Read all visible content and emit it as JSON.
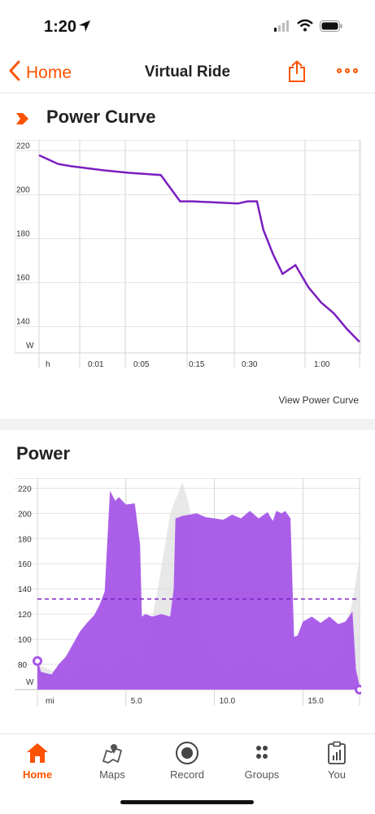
{
  "status_bar": {
    "time": "1:20"
  },
  "nav": {
    "back_label": "Home",
    "title": "Virtual Ride"
  },
  "power_curve": {
    "title": "Power Curve",
    "link_label": "View Power Curve",
    "chart_data": {
      "type": "line",
      "x_tick_labels": [
        "h",
        "0:01",
        "0:05",
        "0:15",
        "0:30",
        "1:00"
      ],
      "y_ticks": [
        220,
        200,
        180,
        160,
        140
      ],
      "y_unit": "W",
      "ylim": [
        128,
        225
      ],
      "color": "#7a1fbf",
      "x": [
        0,
        0.06,
        0.1,
        0.21,
        0.28,
        0.38,
        0.44,
        0.48,
        0.62,
        0.65,
        0.68,
        0.7,
        0.73,
        0.76,
        0.8,
        0.84,
        0.88,
        0.92,
        0.96,
        1.0
      ],
      "values": [
        218,
        214,
        213,
        211,
        210,
        209,
        197,
        197,
        196,
        197,
        197,
        184,
        173,
        164,
        168,
        158,
        151,
        146,
        139,
        133
      ]
    }
  },
  "power": {
    "title": "Power",
    "chart_data": {
      "type": "area",
      "x_tick_labels": [
        "mi",
        "5.0",
        "10.0",
        "15.0"
      ],
      "x_tick_values": [
        0,
        5.0,
        10.0,
        15.0
      ],
      "xlim": [
        0,
        18.2
      ],
      "y_ticks": [
        220,
        200,
        180,
        160,
        140,
        120,
        100,
        80
      ],
      "y_unit": "W",
      "ylim": [
        60,
        228
      ],
      "average": 132,
      "color": "#a656e8",
      "x": [
        0,
        0.2,
        0.5,
        0.8,
        1.2,
        1.6,
        2.0,
        2.4,
        2.8,
        3.2,
        3.5,
        3.8,
        4.1,
        4.4,
        4.6,
        5.0,
        5.5,
        5.8,
        5.9,
        6.1,
        6.5,
        7.0,
        7.5,
        7.7,
        7.8,
        8.2,
        8.6,
        9.0,
        9.5,
        10.0,
        10.5,
        11.0,
        11.5,
        12.0,
        12.5,
        13.0,
        13.3,
        13.5,
        13.8,
        14.0,
        14.3,
        14.5,
        14.7,
        15.0,
        15.5,
        16.0,
        16.5,
        17.0,
        17.4,
        17.8,
        18.0,
        18.2
      ],
      "values": [
        84,
        74,
        73,
        72,
        80,
        86,
        96,
        106,
        113,
        119,
        127,
        138,
        218,
        210,
        213,
        207,
        208,
        175,
        118,
        120,
        118,
        120,
        118,
        140,
        196,
        198,
        199,
        200,
        197,
        196,
        195,
        199,
        196,
        202,
        196,
        201,
        194,
        202,
        200,
        202,
        196,
        102,
        103,
        114,
        118,
        113,
        118,
        112,
        114,
        122,
        76,
        63
      ],
      "shadow_x": [
        0,
        1,
        2,
        3,
        4,
        5,
        6,
        6.8,
        7.5,
        8.2,
        8.6,
        8.9,
        9.3,
        10,
        11,
        12,
        13,
        14,
        15,
        16,
        17,
        17.8,
        18.2
      ],
      "shadow_values": [
        80,
        74,
        70,
        85,
        75,
        90,
        82,
        140,
        200,
        225,
        205,
        140,
        105,
        80,
        75,
        88,
        80,
        72,
        82,
        70,
        85,
        130,
        165
      ]
    }
  },
  "tabs": [
    {
      "label": "Home",
      "icon": "home-icon",
      "active": true
    },
    {
      "label": "Maps",
      "icon": "maps-icon",
      "active": false
    },
    {
      "label": "Record",
      "icon": "record-icon",
      "active": false
    },
    {
      "label": "Groups",
      "icon": "groups-icon",
      "active": false
    },
    {
      "label": "You",
      "icon": "you-icon",
      "active": false
    }
  ],
  "colors": {
    "accent": "#fc5200",
    "power_curve_line": "#7a1fbf",
    "power_fill": "#a656e8"
  }
}
